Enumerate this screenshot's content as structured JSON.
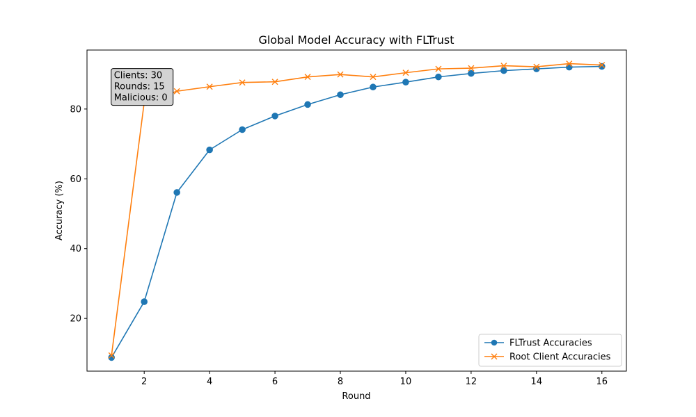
{
  "chart_data": {
    "type": "line",
    "title": "Global Model Accuracy with FLTrust",
    "xlabel": "Round",
    "ylabel": "Accuracy (%)",
    "x": [
      1,
      2,
      3,
      4,
      5,
      6,
      7,
      8,
      9,
      10,
      11,
      12,
      13,
      14,
      15,
      16
    ],
    "xlim": [
      0.25,
      16.75
    ],
    "ylim": [
      4.9,
      96.9
    ],
    "xticks": [
      2,
      4,
      6,
      8,
      10,
      12,
      14,
      16
    ],
    "yticks": [
      20,
      40,
      60,
      80
    ],
    "grid": false,
    "legend_position": "lower-right",
    "series": [
      {
        "name": "FLTrust Accuracies",
        "color": "#1f77b4",
        "marker": "circle",
        "values": [
          8.8,
          24.8,
          56.1,
          68.3,
          74.1,
          78.0,
          81.3,
          84.1,
          86.3,
          87.7,
          89.2,
          90.2,
          91.0,
          91.5,
          92.0,
          92.2
        ]
      },
      {
        "name": "Root Client Accuracies",
        "color": "#ff7f0e",
        "marker": "x",
        "values": [
          9.4,
          81.9,
          85.1,
          86.4,
          87.6,
          87.8,
          89.2,
          89.9,
          89.2,
          90.4,
          91.5,
          91.7,
          92.4,
          92.1,
          93.0,
          92.6
        ]
      }
    ],
    "annotation": {
      "lines": [
        "Clients: 30",
        "Rounds: 15",
        "Malicious: 0"
      ],
      "background": "#d3d3d3",
      "anchor_x": 1,
      "anchor_y": 91
    }
  }
}
